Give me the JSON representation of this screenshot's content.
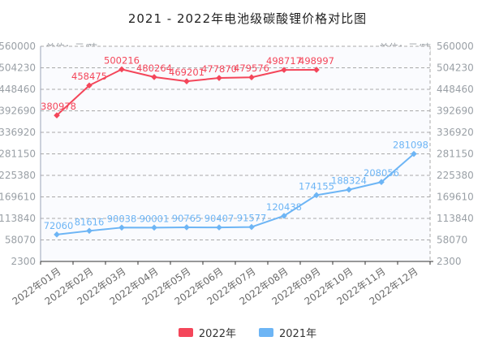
{
  "title": "2021 - 2022年电池级碳酸锂价格对比图",
  "axes": {
    "unit_left": "单位：元/吨",
    "unit_right": "单位：元/吨"
  },
  "legend": {
    "items": [
      {
        "label": "2022年",
        "color": "#f4465a"
      },
      {
        "label": "2021年",
        "color": "#6db5f5"
      }
    ]
  },
  "colors": {
    "series_2022": "#f4465a",
    "series_2021": "#6db5f5",
    "tick_text": "#9aa0a6",
    "x_label_text": "#6b6b6b",
    "grid_line": "#a9a9a9",
    "axis_line": "#333333",
    "plot_border_left": "#9aa3b8",
    "plot_bg": "#fafbfe"
  },
  "chart_data": {
    "type": "line",
    "title": "2021 - 2022年电池级碳酸锂价格对比图",
    "xlabel": "",
    "ylabel": "单位：元/吨",
    "categories": [
      "2022年01月",
      "2022年02月",
      "2022年03月",
      "2022年04月",
      "2022年05月",
      "2022年06月",
      "2022年07月",
      "2022年08月",
      "2022年09月",
      "2022年10月",
      "2022年11月",
      "2022年12月"
    ],
    "y_ticks": [
      2300,
      58070,
      113840,
      169610,
      225380,
      281150,
      336920,
      392690,
      448460,
      504230,
      560000
    ],
    "ylim": [
      2300,
      560000
    ],
    "grid": true,
    "legend_position": "bottom",
    "series": [
      {
        "name": "2022年",
        "color": "#f4465a",
        "values": [
          380978,
          458475,
          500216,
          480264,
          469201,
          477870,
          479576,
          498717,
          498997
        ]
      },
      {
        "name": "2021年",
        "color": "#6db5f5",
        "values": [
          72060,
          81616,
          90038,
          90001,
          90765,
          90407,
          91577,
          120438,
          174155,
          188324,
          208056,
          281098
        ]
      }
    ]
  }
}
